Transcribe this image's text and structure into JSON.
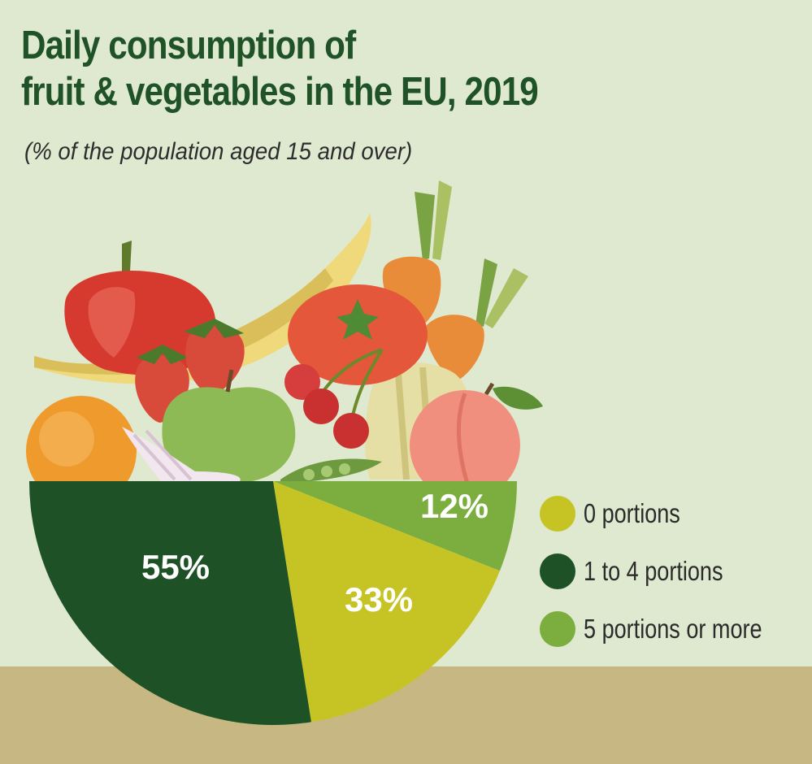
{
  "header": {
    "title_line1": "Daily consumption of",
    "title_line2": "fruit & vegetables in the EU, 2019",
    "subtitle": "(% of  the population aged 15 and over)"
  },
  "colors": {
    "background": "#dfe9cf",
    "table": "#c7b883",
    "zero_portions": "#c6c425",
    "one_to_four": "#1e5126",
    "five_or_more": "#7bae3e"
  },
  "chart_data": {
    "type": "pie",
    "title": "Daily consumption of fruit & vegetables in the EU, 2019",
    "subtitle": "(% of  the population aged 15 and over)",
    "slices": [
      {
        "name": "0 portions",
        "value": 33,
        "label": "33%",
        "color": "#c6c425"
      },
      {
        "name": "1 to 4 portions",
        "value": 55,
        "label": "55%",
        "color": "#1e5126"
      },
      {
        "name": "5 portions or more",
        "value": 12,
        "label": "12%",
        "color": "#7bae3e"
      }
    ],
    "legend_position": "right",
    "units": "%"
  },
  "legend": {
    "items": [
      {
        "label": "0 portions",
        "color": "#c6c425"
      },
      {
        "label": "1 to 4 portions",
        "color": "#1e5126"
      },
      {
        "label": "5 portions or more",
        "color": "#7bae3e"
      }
    ]
  },
  "illustration": {
    "icons": [
      "bell-pepper-icon",
      "banana-icon",
      "carrot-icon",
      "tomato-icon",
      "strawberry-icon",
      "apple-icon",
      "cherry-icon",
      "orange-icon",
      "peach-icon",
      "squash-icon",
      "garlic-icon",
      "pea-pod-icon"
    ]
  }
}
